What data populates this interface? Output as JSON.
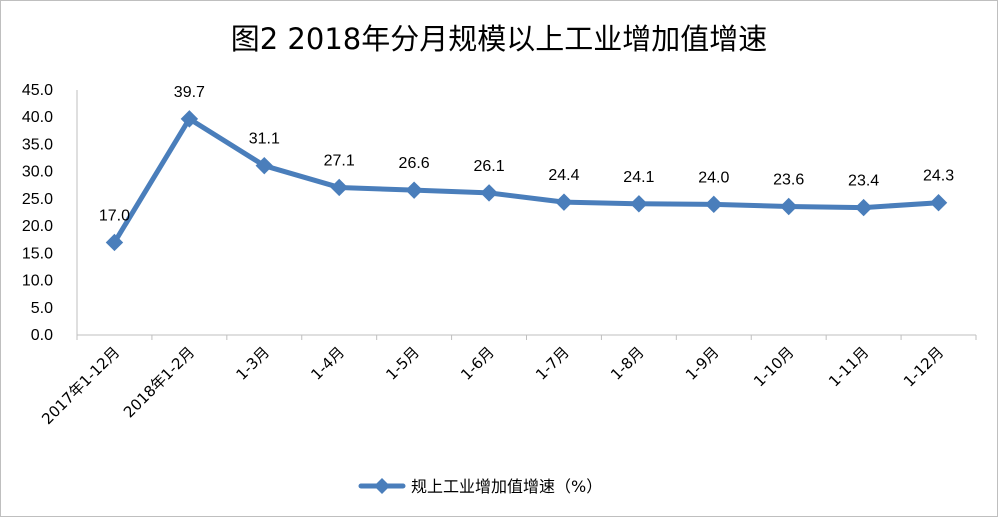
{
  "chart_data": {
    "type": "line",
    "title": "图2 2018年分月规模以上工业增加值增速",
    "categories": [
      "2017年1-12月",
      "2018年1-2月",
      "1-3月",
      "1-4月",
      "1-5月",
      "1-6月",
      "1-7月",
      "1-8月",
      "1-9月",
      "1-10月",
      "1-11月",
      "1-12月"
    ],
    "series": [
      {
        "name": "规上工业增加值增速（%）",
        "values": [
          17.0,
          39.7,
          31.1,
          27.1,
          26.6,
          26.1,
          24.4,
          24.1,
          24.0,
          23.6,
          23.4,
          24.3
        ],
        "labels": [
          "17.0",
          "39.7",
          "31.1",
          "27.1",
          "26.6",
          "26.1",
          "24.4",
          "24.1",
          "24.0",
          "23.6",
          "23.4",
          "24.3"
        ],
        "color": "#4a7ebb",
        "marker": "diamond"
      }
    ],
    "ylim": [
      0,
      45
    ],
    "yticks": [
      "0.0",
      "5.0",
      "10.0",
      "15.0",
      "20.0",
      "25.0",
      "30.0",
      "35.0",
      "40.0",
      "45.0"
    ],
    "grid": false,
    "legend": "bottom-center"
  }
}
